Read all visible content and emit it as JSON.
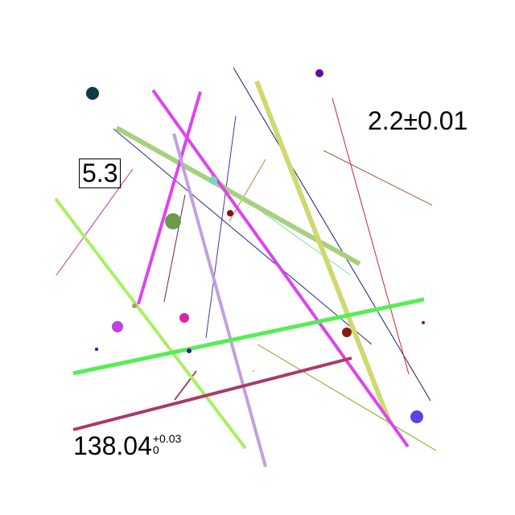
{
  "labels": {
    "top_right": "2.2±0.01",
    "boxed": "5.3",
    "bottom_left_base": "138.04",
    "bottom_left_sup": "+0.03",
    "bottom_left_sub": "0"
  }
}
